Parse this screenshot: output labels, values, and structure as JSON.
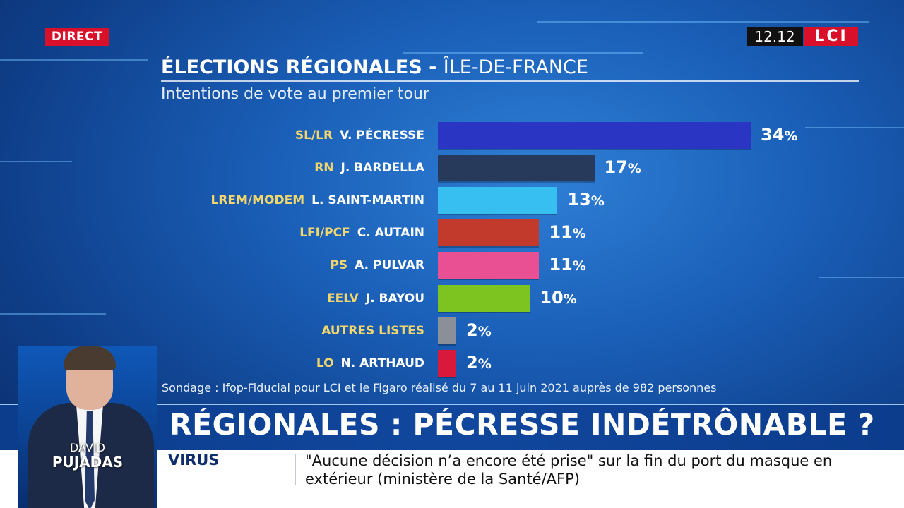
{
  "top_bar": {
    "live_badge": "DIRECT",
    "clock": "12.12",
    "channel_logo": "LCI"
  },
  "chart_data": {
    "type": "bar",
    "orientation": "horizontal",
    "title": "ÉLECTIONS RÉGIONALES",
    "title_separator": "-",
    "title_region": "ÎLE-DE-FRANCE",
    "subtitle": "Intentions de vote au premier tour",
    "unit": "%",
    "max": 34,
    "rows": [
      {
        "party": "SL/LR",
        "candidate": "V. PÉCRESSE",
        "value": 34,
        "color": "#2a35c4"
      },
      {
        "party": "RN",
        "candidate": "J. BARDELLA",
        "value": 17,
        "color": "#283a5c"
      },
      {
        "party": "LREM/MODEM",
        "candidate": "L. SAINT-MARTIN",
        "value": 13,
        "color": "#37bff2"
      },
      {
        "party": "LFI/PCF",
        "candidate": "C. AUTAIN",
        "value": 11,
        "color": "#c23a2c"
      },
      {
        "party": "PS",
        "candidate": "A. PULVAR",
        "value": 11,
        "color": "#e94f93"
      },
      {
        "party": "EELV",
        "candidate": "J. BAYOU",
        "value": 10,
        "color": "#7ec421"
      },
      {
        "party": "AUTRES LISTES",
        "candidate": "",
        "value": 2,
        "color": "#8a8f98"
      },
      {
        "party": "LO",
        "candidate": "N. ARTHAUD",
        "value": 2,
        "color": "#d8193c"
      }
    ],
    "source": "Sondage : Ifop-Fiducial pour LCI et le Figaro réalisé du 7 au 11 juin 2021 auprès de 982 personnes"
  },
  "headline": "RÉGIONALES : PÉCRESSE INDÉTRÔNABLE ?",
  "ticker": {
    "tag": "VIRUS",
    "text": "\"Aucune décision n’a encore été prise\" sur la fin du port du masque en extérieur (ministère de la Santé/AFP)"
  },
  "presenter": {
    "first_name": "DAVID",
    "last_name": "PUJADAS"
  }
}
